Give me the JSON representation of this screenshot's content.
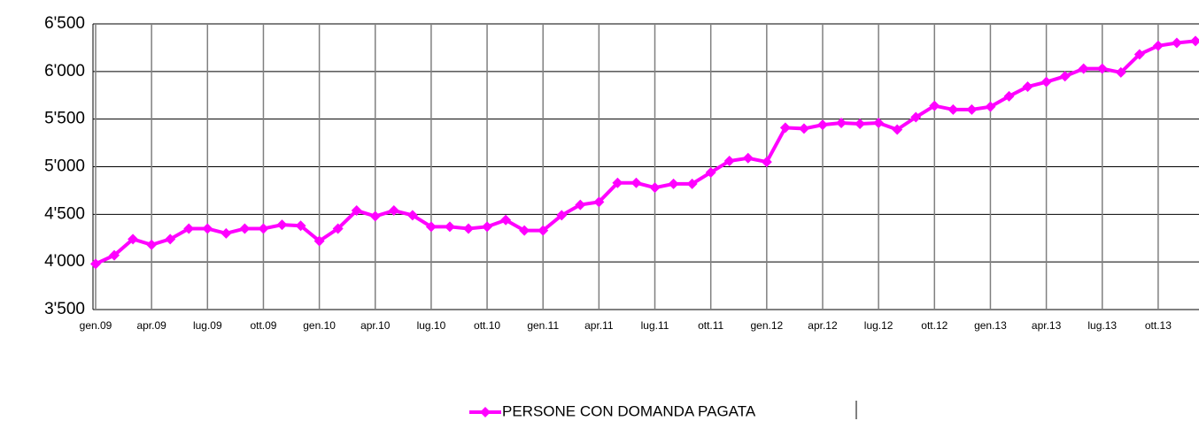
{
  "chart_data": {
    "type": "line",
    "categories": [
      "gen.09",
      null,
      null,
      "apr.09",
      null,
      null,
      "lug.09",
      null,
      null,
      "ott.09",
      null,
      null,
      "gen.10",
      null,
      null,
      "apr.10",
      null,
      null,
      "lug.10",
      null,
      null,
      "ott.10",
      null,
      null,
      "gen.11",
      null,
      null,
      "apr.11",
      null,
      null,
      "lug.11",
      null,
      null,
      "ott.11",
      null,
      null,
      "gen.12",
      null,
      null,
      "apr.12",
      null,
      null,
      "lug.12",
      null,
      null,
      "ott.12",
      null,
      null,
      "gen.13",
      null,
      null,
      "apr.13",
      null,
      null,
      "lug.13",
      null,
      null,
      "ott.13",
      null,
      null
    ],
    "series": [
      {
        "name": "PERSONE CON DOMANDA PAGATA",
        "color": "#ff00ff",
        "values": [
          3980,
          4070,
          4240,
          4180,
          4240,
          4350,
          4350,
          4300,
          4350,
          4350,
          4390,
          4380,
          4220,
          4350,
          4540,
          4480,
          4540,
          4490,
          4370,
          4370,
          4350,
          4370,
          4440,
          4330,
          4330,
          4490,
          4600,
          4630,
          4830,
          4830,
          4780,
          4820,
          4820,
          4940,
          5060,
          5090,
          5050,
          5410,
          5400,
          5440,
          5460,
          5450,
          5460,
          5390,
          5520,
          5640,
          5600,
          5600,
          5630,
          5740,
          5840,
          5890,
          5950,
          6030,
          6030,
          5990,
          6180,
          6270,
          6300,
          6320
        ]
      }
    ],
    "ylim": [
      3500,
      6500
    ],
    "yticks": [
      {
        "value": 3500,
        "label": "3'500"
      },
      {
        "value": 4000,
        "label": "4'000"
      },
      {
        "value": 4500,
        "label": "4'500"
      },
      {
        "value": 5000,
        "label": "5'000"
      },
      {
        "value": 5500,
        "label": "5'500"
      },
      {
        "value": 6000,
        "label": "6'000"
      },
      {
        "value": 6500,
        "label": "6'500"
      }
    ],
    "grid": true,
    "legend": "bottom"
  }
}
